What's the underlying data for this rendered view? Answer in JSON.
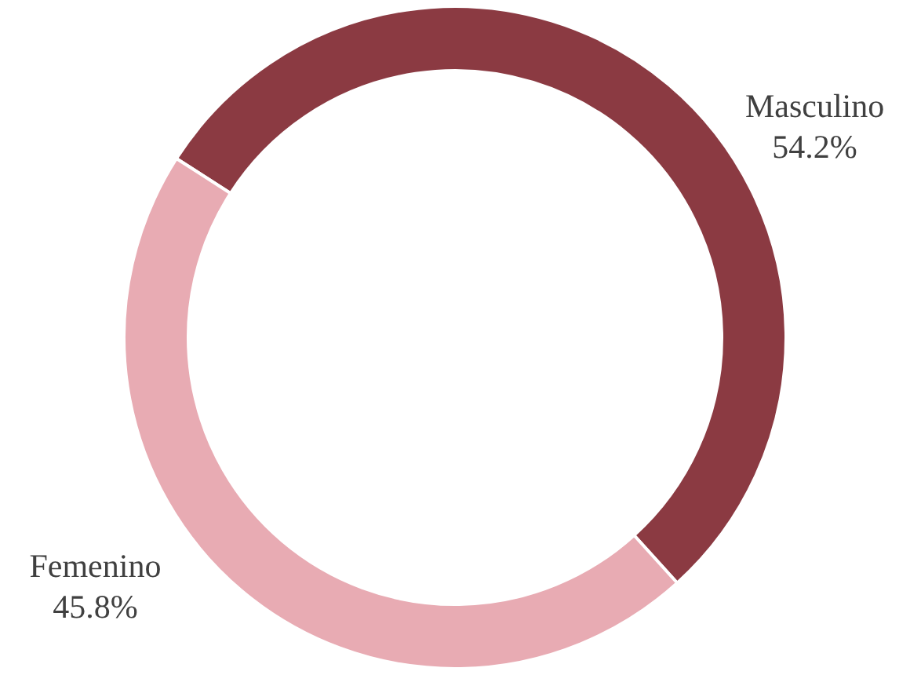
{
  "chart_data": {
    "type": "donut",
    "categories": [
      "Masculino",
      "Femenino"
    ],
    "values": [
      54.2,
      45.8
    ],
    "colors": [
      "#8b3a42",
      "#e8abb3"
    ],
    "value_labels": [
      "54.2%",
      "45.8%"
    ]
  }
}
